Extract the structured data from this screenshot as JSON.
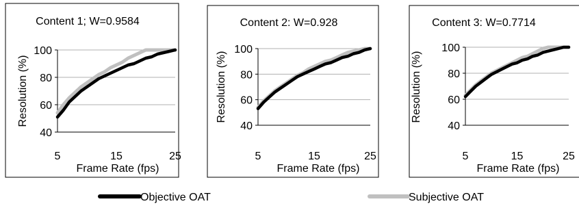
{
  "colors": {
    "objective": "#000000",
    "subjective": "#c0c0c0",
    "grid": "#b0b0b0",
    "frame": "#000000"
  },
  "legend": {
    "objective_label": "Objective OAT",
    "subjective_label": "Subjective OAT"
  },
  "chart_data": [
    {
      "type": "line",
      "title": "Content 1; W=0.9584",
      "xlabel": "Frame Rate (fps)",
      "ylabel": "Resolution (%)",
      "xlim": [
        5,
        25
      ],
      "ylim": [
        40,
        100
      ],
      "xticks": [
        "5",
        "15",
        "25"
      ],
      "yticks": [
        "40",
        "60",
        "80",
        "100"
      ],
      "grid": true,
      "x": [
        5,
        6,
        7,
        8,
        9,
        10,
        11,
        12,
        13,
        14,
        15,
        16,
        17,
        18,
        19,
        20,
        21,
        22,
        23,
        24,
        25
      ],
      "series": [
        {
          "name": "Objective OAT",
          "values": [
            51,
            56,
            62,
            66,
            70,
            73,
            76,
            79,
            81,
            83,
            85,
            87,
            89,
            90,
            92,
            94,
            95,
            97,
            98,
            99,
            100
          ]
        },
        {
          "name": "Subjective OAT",
          "values": [
            54,
            60,
            65,
            69,
            73,
            76,
            79,
            82,
            84,
            87,
            89,
            91,
            94,
            96,
            98,
            100,
            100,
            100,
            100,
            100,
            100
          ]
        }
      ]
    },
    {
      "type": "line",
      "title": "Content 2: W=0.928",
      "xlabel": "Frame Rate (fps)",
      "ylabel": "Resolution (%)",
      "xlim": [
        5,
        25
      ],
      "ylim": [
        40,
        100
      ],
      "xticks": [
        "5",
        "15",
        "25"
      ],
      "yticks": [
        "40",
        "60",
        "80",
        "100"
      ],
      "grid": true,
      "x": [
        5,
        6,
        7,
        8,
        9,
        10,
        11,
        12,
        13,
        14,
        15,
        16,
        17,
        18,
        19,
        20,
        21,
        22,
        23,
        24,
        25
      ],
      "series": [
        {
          "name": "Objective OAT",
          "values": [
            53,
            58,
            62,
            66,
            69,
            72,
            75,
            78,
            80,
            82,
            84,
            86,
            88,
            89,
            91,
            93,
            94,
            96,
            97,
            99,
            100
          ]
        },
        {
          "name": "Subjective OAT",
          "values": [
            54,
            59,
            63,
            67,
            70,
            73,
            76,
            79,
            81,
            84,
            86,
            88,
            90,
            91,
            93,
            95,
            97,
            98,
            99,
            100,
            100
          ]
        }
      ]
    },
    {
      "type": "line",
      "title": "Content 3: W=0.7714",
      "xlabel": "Frame Rate (fps)",
      "ylabel": "Resolution (%)",
      "xlim": [
        5,
        25
      ],
      "ylim": [
        40,
        100
      ],
      "xticks": [
        "5",
        "15",
        "25"
      ],
      "yticks": [
        "40",
        "60",
        "80",
        "100"
      ],
      "grid": true,
      "x": [
        5,
        6,
        7,
        8,
        9,
        10,
        11,
        12,
        13,
        14,
        15,
        16,
        17,
        18,
        19,
        20,
        21,
        22,
        23,
        24,
        25
      ],
      "series": [
        {
          "name": "Objective OAT",
          "values": [
            62,
            66,
            70,
            73,
            76,
            79,
            81,
            83,
            85,
            87,
            88,
            90,
            91,
            93,
            94,
            96,
            97,
            98,
            99,
            100,
            100
          ]
        },
        {
          "name": "Subjective OAT",
          "values": [
            63,
            67,
            71,
            74,
            77,
            80,
            82,
            84,
            86,
            88,
            90,
            92,
            93,
            95,
            97,
            99,
            100,
            100,
            100,
            100,
            100
          ]
        }
      ]
    }
  ]
}
